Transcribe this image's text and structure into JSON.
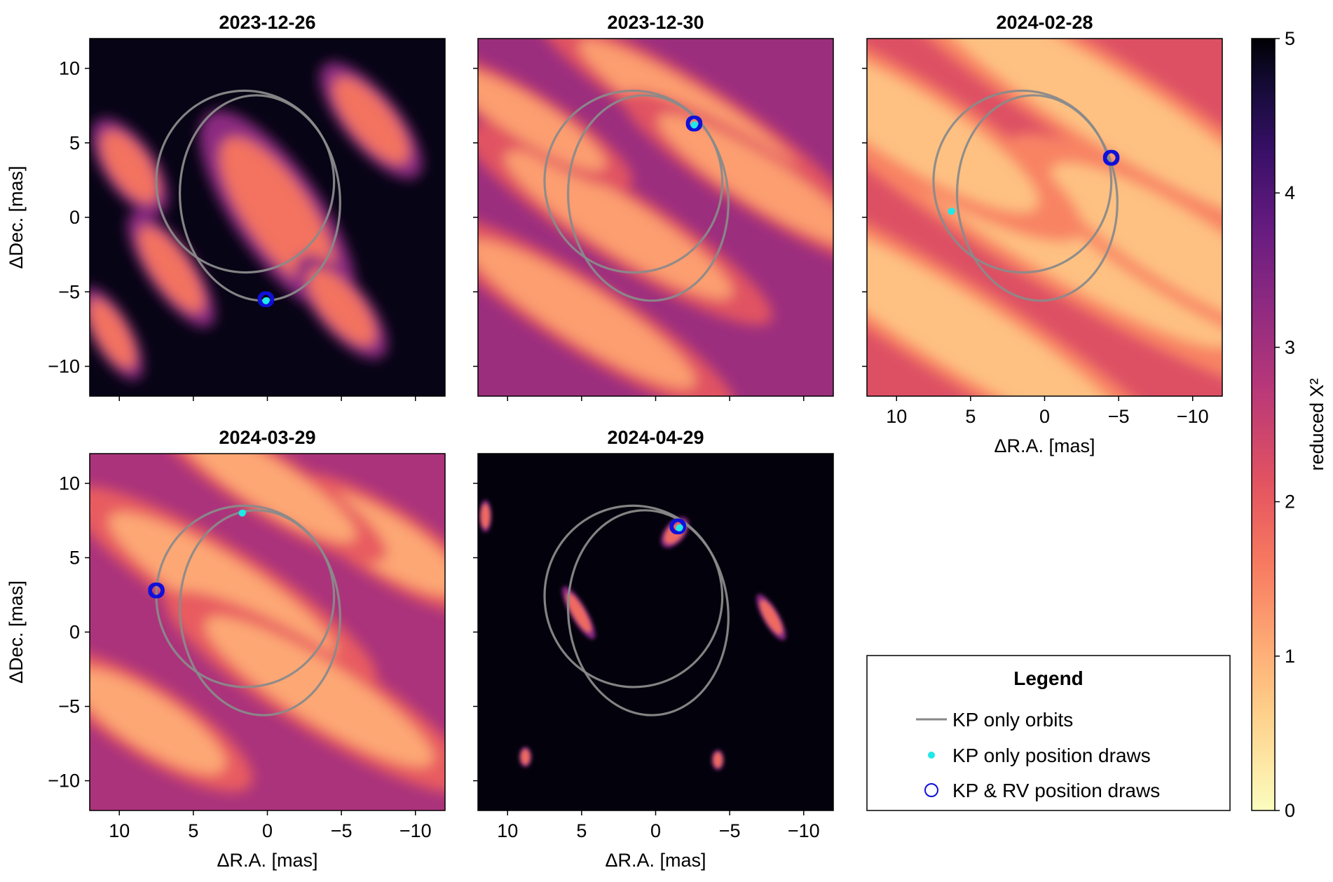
{
  "chart_data": {
    "type": "heatmap",
    "xlabel": "ΔR.A. [mas]",
    "ylabel": "ΔDec. [mas]",
    "xlim": [
      12,
      -12
    ],
    "ylim": [
      -12,
      12
    ],
    "x_ticks": [
      10,
      5,
      0,
      -5,
      -10
    ],
    "y_ticks": [
      10,
      5,
      0,
      -5,
      -10
    ],
    "x_tick_labels": [
      "10",
      "5",
      "0",
      "−5",
      "−10"
    ],
    "y_tick_labels": [
      "10",
      "5",
      "0",
      "−5",
      "−10"
    ],
    "colorbar": {
      "label": "reduced Χ²",
      "range": [
        0,
        5
      ],
      "ticks": [
        0,
        1,
        2,
        3,
        4,
        5
      ],
      "tick_labels": [
        "0",
        "1",
        "2",
        "3",
        "4",
        "5"
      ],
      "colormap": "magma (reversed)"
    },
    "orbits": [
      {
        "name": "KP only orbits",
        "center": [
          1.5,
          2.4
        ],
        "rx": 6.0,
        "ry": 6.1,
        "tilt_deg": -8
      },
      {
        "name": "KP only orbits",
        "center": [
          0.5,
          1.3
        ],
        "rx": 5.4,
        "ry": 6.9,
        "tilt_deg": -5
      }
    ],
    "panels": [
      {
        "title": "2023-12-26",
        "peaks": [
          [
            -0.7,
            0.3,
            2.2,
            6.0,
            -35
          ],
          [
            9.3,
            3.4,
            1.3,
            2.8,
            -35
          ],
          [
            -7.0,
            6.5,
            1.4,
            3.6,
            -40
          ],
          [
            6.5,
            -3.5,
            1.2,
            3.4,
            -35
          ],
          [
            -5.0,
            -6.0,
            1.3,
            3.2,
            -40
          ],
          [
            10.5,
            -7.8,
            1.0,
            2.6,
            -30
          ]
        ],
        "kp_rv_draws": [
          [
            0.1,
            -5.5
          ]
        ],
        "kp_only_draws": [
          [
            0.1,
            -5.6
          ]
        ]
      },
      {
        "title": "2023-12-30",
        "peaks": [
          [
            2.5,
            -0.5,
            9.0,
            1.8,
            32
          ],
          [
            -2.5,
            7.0,
            9.0,
            1.6,
            32
          ],
          [
            5.0,
            -6.5,
            9.0,
            1.8,
            32
          ],
          [
            -7.0,
            2.5,
            8.0,
            1.6,
            32
          ],
          [
            8.5,
            6.5,
            6.0,
            1.4,
            32
          ]
        ],
        "kp_rv_draws": [
          [
            -2.6,
            6.3
          ]
        ],
        "kp_only_draws": [
          [
            -2.6,
            6.2
          ]
        ]
      },
      {
        "title": "2024-02-28",
        "peaks": [
          [
            1.0,
            0.0,
            16.0,
            2.6,
            32
          ],
          [
            -4.0,
            7.5,
            14.0,
            2.4,
            32
          ],
          [
            6.0,
            -7.5,
            14.0,
            2.4,
            32
          ],
          [
            -9.0,
            -2.0,
            10.0,
            2.4,
            32
          ],
          [
            9.0,
            6.0,
            10.0,
            2.4,
            32
          ]
        ],
        "kp_rv_draws": [
          [
            -4.5,
            4.0
          ]
        ],
        "kp_only_draws": [
          [
            6.3,
            0.4
          ]
        ]
      },
      {
        "title": "2024-03-29",
        "peaks": [
          [
            3.0,
            3.0,
            9.0,
            2.0,
            32
          ],
          [
            -3.5,
            -4.0,
            9.0,
            2.0,
            32
          ],
          [
            -8.0,
            6.0,
            6.0,
            1.8,
            32
          ],
          [
            8.0,
            -6.0,
            6.0,
            1.8,
            32
          ],
          [
            0.0,
            10.0,
            7.0,
            1.6,
            32
          ]
        ],
        "kp_rv_draws": [
          [
            7.5,
            2.8
          ]
        ],
        "kp_only_draws": [
          [
            1.7,
            8.0
          ]
        ]
      },
      {
        "title": "2024-04-29",
        "peaks": [
          [
            -1.3,
            6.7,
            0.5,
            0.9,
            40
          ],
          [
            5.2,
            1.3,
            0.4,
            1.5,
            -30
          ],
          [
            -7.8,
            1.0,
            0.4,
            1.3,
            -30
          ],
          [
            11.5,
            7.8,
            0.3,
            0.8,
            0
          ],
          [
            8.8,
            -8.4,
            0.3,
            0.5,
            0
          ],
          [
            -4.2,
            -8.6,
            0.3,
            0.5,
            0
          ]
        ],
        "kp_rv_draws": [
          [
            -1.5,
            7.1
          ]
        ],
        "kp_only_draws": [
          [
            -1.6,
            7.0
          ]
        ]
      }
    ],
    "legend": {
      "title": "Legend",
      "placement": "bottom-right",
      "entries": [
        {
          "label": "KP only orbits",
          "marker": "line",
          "color": "#888888"
        },
        {
          "label": "KP only position draws",
          "marker": "dot",
          "color": "#1fe8e8"
        },
        {
          "label": "KP & RV position draws",
          "marker": "open-circle",
          "color": "#1010d8"
        }
      ]
    },
    "colors": {
      "orbit": "#8a8a8a",
      "kp_only": "#1fe8e8",
      "kp_rv": "#1010d8",
      "background": "#000004"
    }
  }
}
